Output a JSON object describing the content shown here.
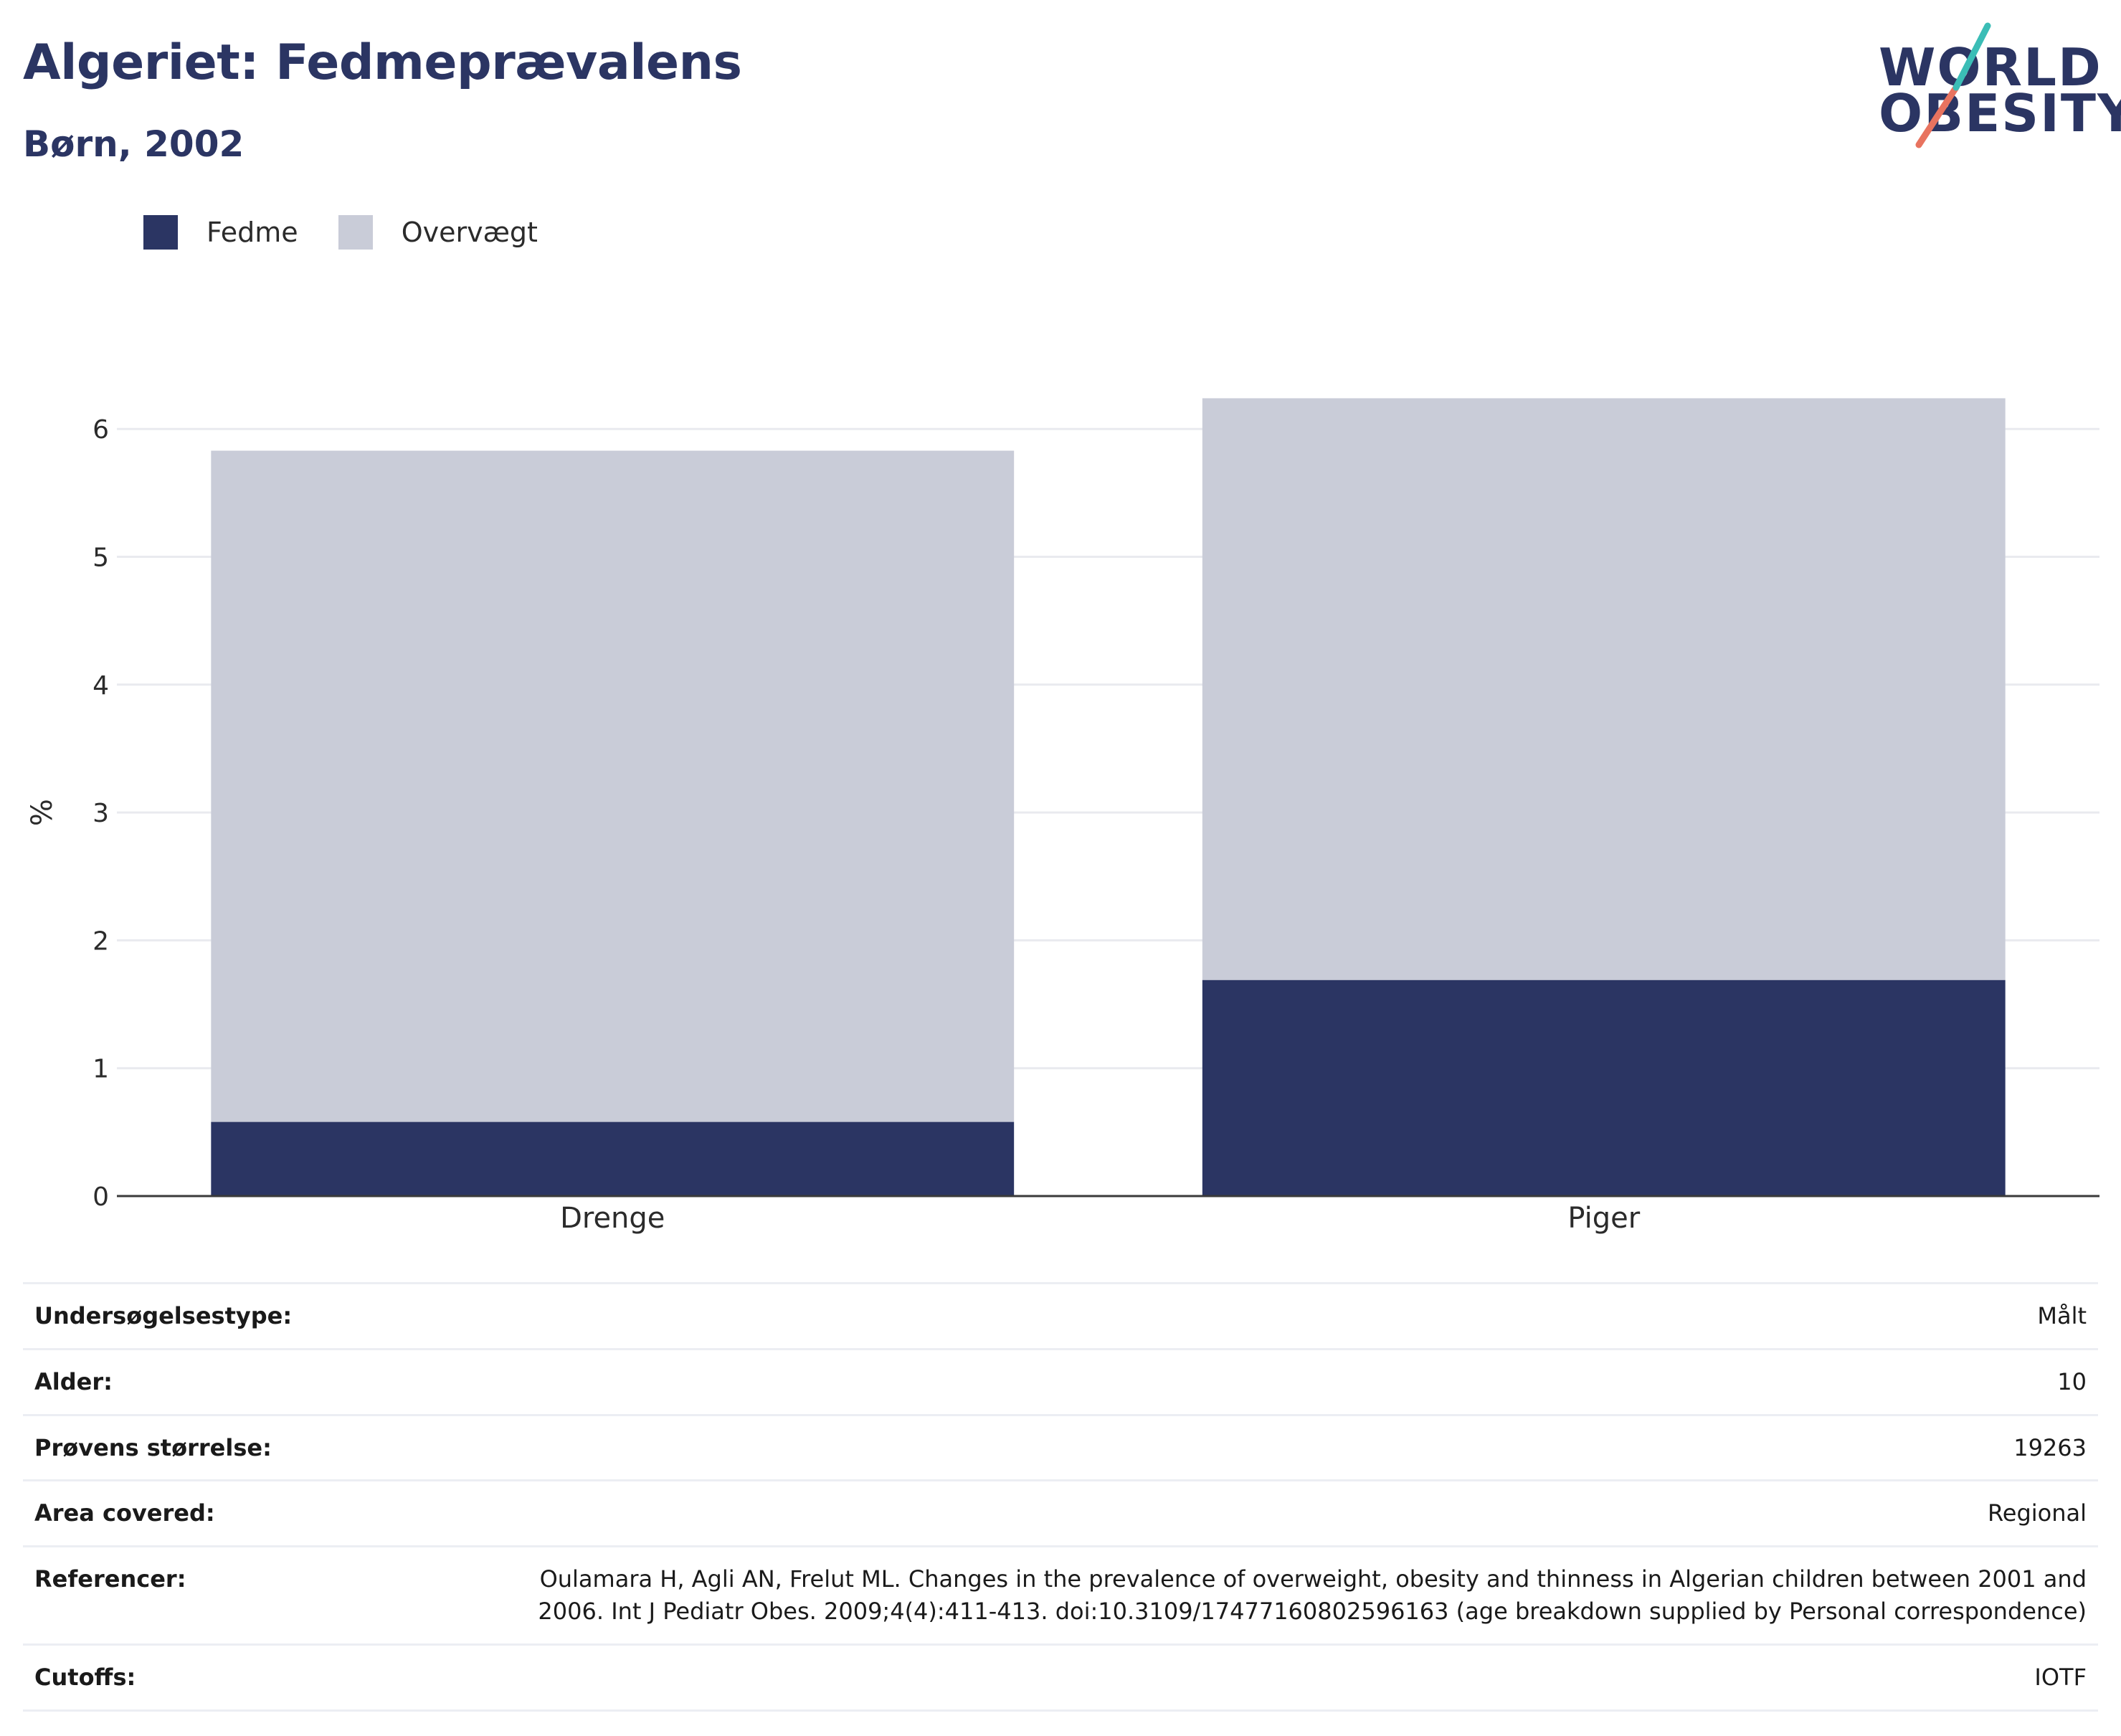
{
  "header": {
    "title": "Algeriet: Fedmeprævalens",
    "subtitle": "Børn, 2002"
  },
  "logo": {
    "line1": "WORLD",
    "line2": "OBESITY"
  },
  "legend": [
    {
      "label": "Fedme",
      "color": "#2b3563"
    },
    {
      "label": "Overvægt",
      "color": "#c9ccd8"
    }
  ],
  "chart_data": {
    "type": "bar",
    "stacked": true,
    "categories": [
      "Drenge",
      "Piger"
    ],
    "series": [
      {
        "name": "Fedme",
        "values": [
          0.58,
          1.69
        ],
        "color": "#2b3563"
      },
      {
        "name": "Overvægt",
        "values": [
          5.25,
          4.55
        ],
        "color": "#c9ccd8"
      }
    ],
    "ylabel": "%",
    "ylim": [
      0,
      6.5
    ],
    "yticks": [
      0,
      1,
      2,
      3,
      4,
      5,
      6
    ],
    "grid": true,
    "legend_position": "top-left"
  },
  "info_table": [
    {
      "key": "Undersøgelsestype:",
      "value": "Målt"
    },
    {
      "key": "Alder:",
      "value": "10"
    },
    {
      "key": "Prøvens størrelse:",
      "value": "19263"
    },
    {
      "key": "Area covered:",
      "value": "Regional"
    },
    {
      "key": "Referencer:",
      "value": "Oulamara H, Agli AN, Frelut ML. Changes in the prevalence of overweight, obesity and thinness in Algerian children between 2001 and 2006. Int J Pediatr Obes. 2009;4(4):411-413. doi:10.3109/17477160802596163 (age breakdown supplied by Personal correspondence)"
    },
    {
      "key": "Cutoffs:",
      "value": "IOTF"
    }
  ]
}
